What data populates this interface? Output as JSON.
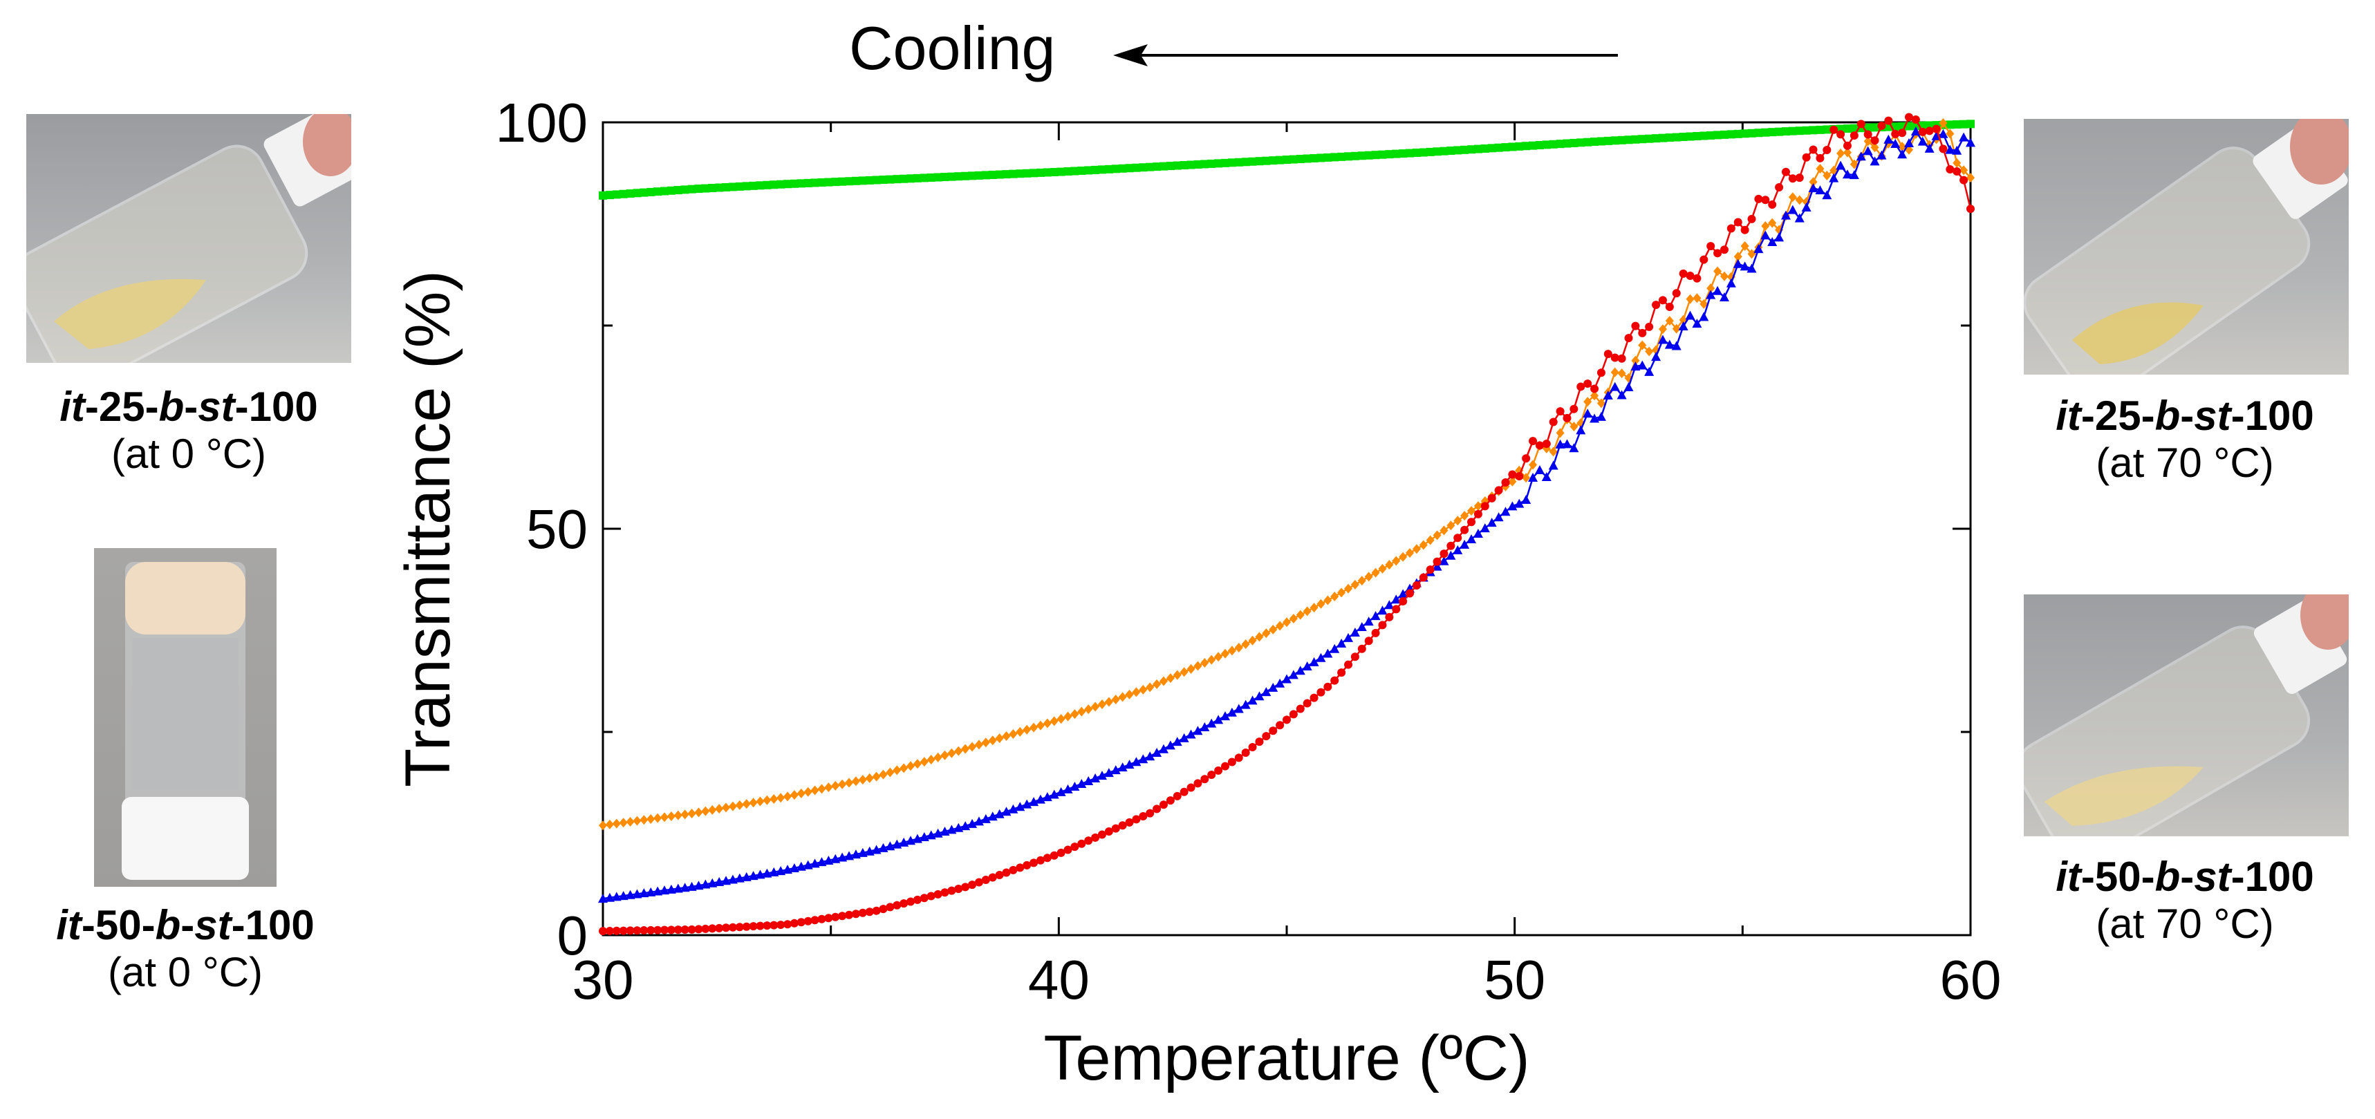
{
  "cooling": {
    "label": "Cooling"
  },
  "photos": [
    {
      "name_parts": [
        "it",
        "-25-",
        "b",
        "-",
        "st",
        "-100"
      ],
      "condition": "(at 0 °C)"
    },
    {
      "name_parts": [
        "it",
        "-50-",
        "b",
        "-",
        "st",
        "-100"
      ],
      "condition": "(at 0 °C)"
    },
    {
      "name_parts": [
        "it",
        "-25-",
        "b",
        "-",
        "st",
        "-100"
      ],
      "condition": "(at 70 °C)"
    },
    {
      "name_parts": [
        "it",
        "-50-",
        "b",
        "-",
        "st",
        "-100"
      ],
      "condition": "(at 70 °C)"
    }
  ],
  "chart_data": {
    "type": "scatter",
    "title": "",
    "xlabel": "Temperature (ºC)",
    "ylabel": "Transmittance (%)",
    "xlim": [
      30,
      60
    ],
    "ylim": [
      0,
      100
    ],
    "xticks": [
      30,
      40,
      50,
      60
    ],
    "yticks": [
      0,
      50,
      100
    ],
    "grid": false,
    "legend": "none",
    "series": [
      {
        "color": "#00dd00",
        "marker": "square",
        "x": [
          30,
          32,
          34,
          36,
          38,
          40,
          42,
          44,
          46,
          48,
          50,
          52,
          54,
          56,
          58,
          60
        ],
        "y": [
          91,
          91.8,
          92.4,
          92.9,
          93.4,
          93.9,
          94.5,
          95.1,
          95.7,
          96.3,
          97,
          97.7,
          98.3,
          98.9,
          99.4,
          99.8
        ]
      },
      {
        "color": "#ff8c00",
        "marker": "diamond",
        "x": [
          30,
          32,
          34,
          36,
          38,
          40,
          42,
          44,
          46,
          48,
          50,
          52,
          54,
          56,
          57,
          58,
          59,
          59.5,
          60
        ],
        "y": [
          13.5,
          15,
          17,
          19.5,
          23,
          26.5,
          30.5,
          35.5,
          41.5,
          48,
          56,
          67,
          78,
          89,
          95,
          97,
          98,
          99,
          92
        ]
      },
      {
        "color": "#0000ee",
        "marker": "triangle",
        "x": [
          30,
          32,
          34,
          36,
          38,
          40,
          42,
          44,
          46,
          48,
          50,
          52,
          54,
          56,
          57,
          58,
          59,
          60
        ],
        "y": [
          4.5,
          6,
          8,
          10.5,
          13.5,
          17.5,
          22,
          28,
          35,
          44,
          53,
          65.5,
          76,
          88,
          93,
          96.5,
          98,
          97
        ]
      },
      {
        "color": "#ee0000",
        "marker": "circle",
        "x": [
          30,
          32,
          34,
          36,
          38,
          40,
          42,
          44,
          46,
          48,
          50,
          52,
          54,
          56,
          57,
          58,
          59,
          59.5,
          60
        ],
        "y": [
          0.5,
          0.7,
          1.3,
          3,
          6,
          10,
          15,
          22,
          31,
          44,
          57,
          70,
          82,
          93,
          98,
          99,
          100,
          96,
          90
        ]
      }
    ]
  }
}
